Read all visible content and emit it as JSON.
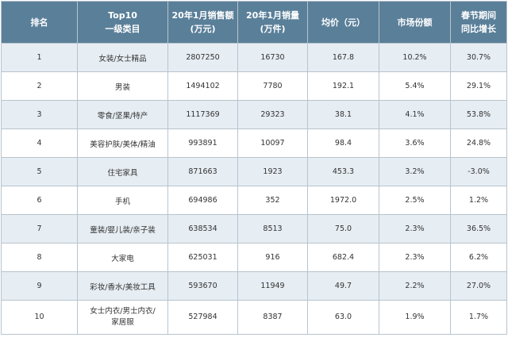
{
  "table": {
    "headers": [
      [
        "排名"
      ],
      [
        "Top10",
        "一级类目"
      ],
      [
        "20年1月销售额",
        "(万元)"
      ],
      [
        "20年1月销量",
        "(万件)"
      ],
      [
        "均价（元）"
      ],
      [
        "市场份额"
      ],
      [
        "春节期间",
        "同比增长"
      ]
    ],
    "rows": [
      {
        "rank": "1",
        "category": [
          "女装/女士精品"
        ],
        "sales": "2807250",
        "volume": "16730",
        "price": "167.8",
        "share": "10.2%",
        "growth": "30.7%"
      },
      {
        "rank": "2",
        "category": [
          "男装"
        ],
        "sales": "1494102",
        "volume": "7780",
        "price": "192.1",
        "share": "5.4%",
        "growth": "29.1%"
      },
      {
        "rank": "3",
        "category": [
          "零食/坚果/特产"
        ],
        "sales": "1117369",
        "volume": "29323",
        "price": "38.1",
        "share": "4.1%",
        "growth": "53.8%"
      },
      {
        "rank": "4",
        "category": [
          "美容护肤/美体/精油"
        ],
        "sales": "993891",
        "volume": "10097",
        "price": "98.4",
        "share": "3.6%",
        "growth": "24.8%"
      },
      {
        "rank": "5",
        "category": [
          "住宅家具"
        ],
        "sales": "871663",
        "volume": "1923",
        "price": "453.3",
        "share": "3.2%",
        "growth": "-3.0%"
      },
      {
        "rank": "6",
        "category": [
          "手机"
        ],
        "sales": "694986",
        "volume": "352",
        "price": "1972.0",
        "share": "2.5%",
        "growth": "1.2%"
      },
      {
        "rank": "7",
        "category": [
          "童装/婴儿装/亲子装"
        ],
        "sales": "638534",
        "volume": "8513",
        "price": "75.0",
        "share": "2.3%",
        "growth": "36.5%"
      },
      {
        "rank": "8",
        "category": [
          "大家电"
        ],
        "sales": "625031",
        "volume": "916",
        "price": "682.4",
        "share": "2.3%",
        "growth": "6.2%"
      },
      {
        "rank": "9",
        "category": [
          "彩妆/香水/美妆工具"
        ],
        "sales": "593670",
        "volume": "11949",
        "price": "49.7",
        "share": "2.2%",
        "growth": "27.0%"
      },
      {
        "rank": "10",
        "category": [
          "女士内衣/男士内衣/",
          "家居服"
        ],
        "sales": "527984",
        "volume": "8387",
        "price": "63.0",
        "share": "1.9%",
        "growth": "1.7%"
      }
    ]
  }
}
